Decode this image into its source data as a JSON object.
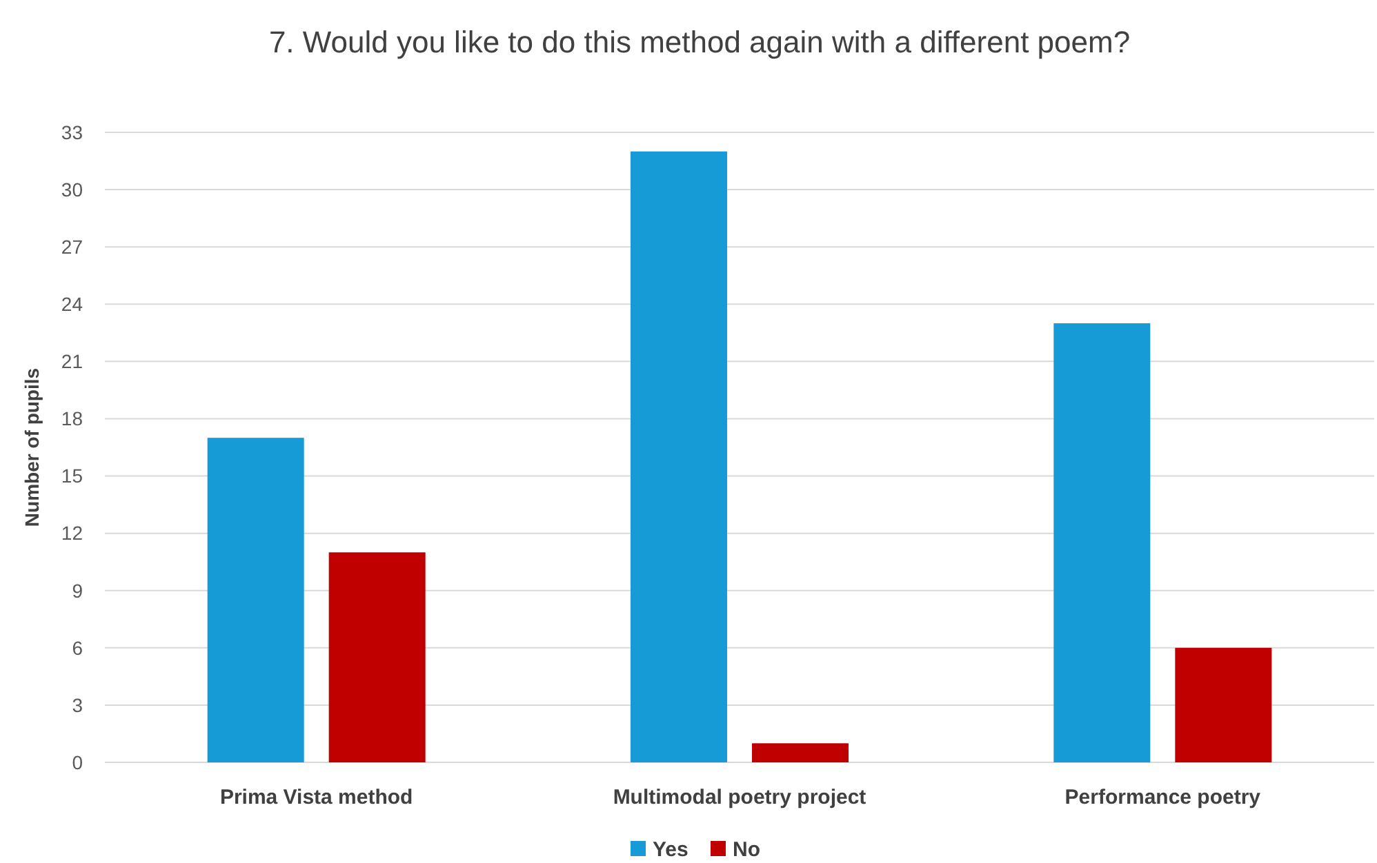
{
  "chart_data": {
    "type": "bar",
    "title": "7. Would you like to do this method again with a different poem?",
    "ylabel": "Number of pupils",
    "categories": [
      "Prima Vista method",
      "Multimodal poetry project",
      "Performance poetry"
    ],
    "series": [
      {
        "name": "Yes",
        "color": "#179bd7",
        "values": [
          17,
          32,
          23
        ]
      },
      {
        "name": "No",
        "color": "#c00000",
        "values": [
          11,
          1,
          6
        ]
      }
    ],
    "ylim": [
      0,
      33
    ],
    "yticks": [
      0,
      3,
      6,
      9,
      12,
      15,
      18,
      21,
      24,
      27,
      30,
      33
    ],
    "grid": "y",
    "legend": "bottom"
  }
}
